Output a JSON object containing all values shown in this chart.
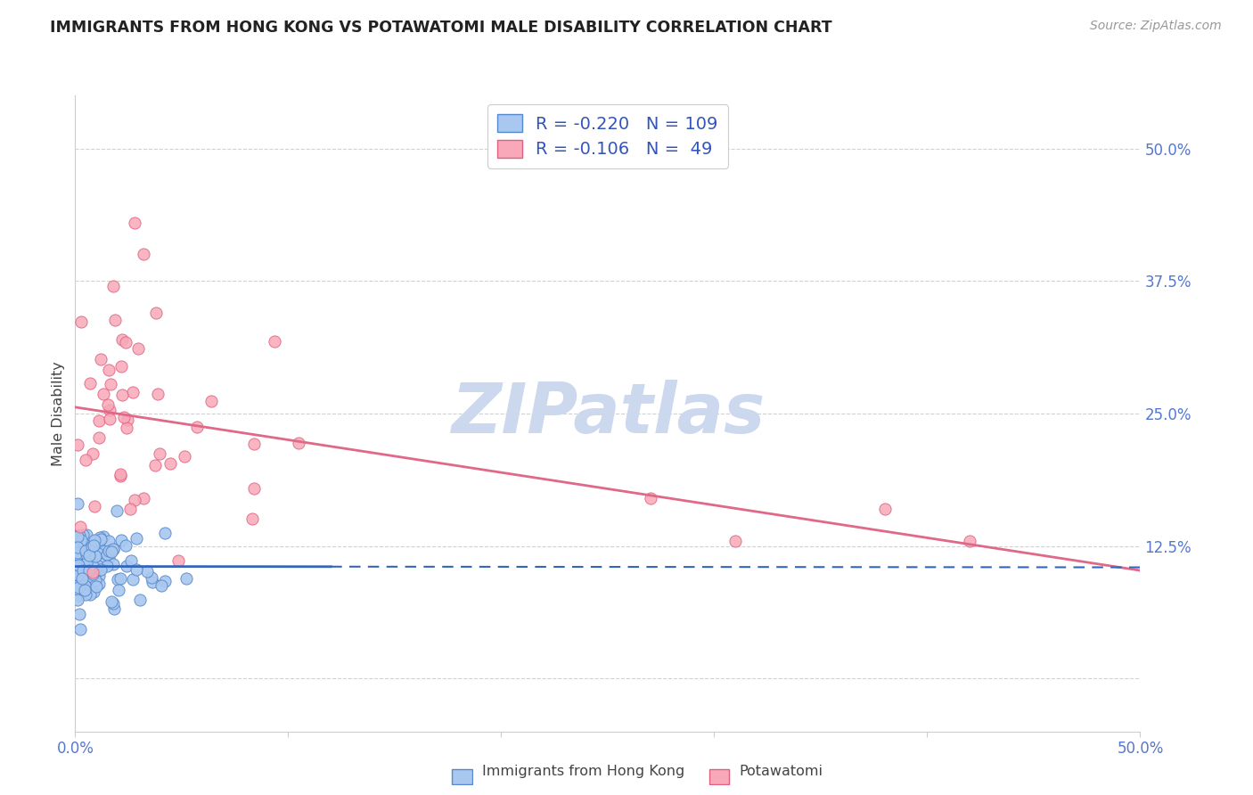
{
  "title": "IMMIGRANTS FROM HONG KONG VS POTAWATOMI MALE DISABILITY CORRELATION CHART",
  "source": "Source: ZipAtlas.com",
  "ylabel": "Male Disability",
  "blue_R": -0.22,
  "blue_N": 109,
  "pink_R": -0.106,
  "pink_N": 49,
  "blue_color": "#a8c8f0",
  "pink_color": "#f8a8b8",
  "blue_edge_color": "#5588cc",
  "pink_edge_color": "#e06080",
  "blue_line_color": "#3366bb",
  "pink_line_color": "#e06888",
  "legend_text_color": "#3355bb",
  "title_color": "#222222",
  "watermark_color": "#ccd8ee",
  "axis_label_color": "#5577cc",
  "grid_color": "#cccccc",
  "background_color": "#ffffff",
  "xlim": [
    0.0,
    0.5
  ],
  "ylim": [
    -0.05,
    0.55
  ],
  "yticks": [
    0.0,
    0.125,
    0.25,
    0.375,
    0.5
  ],
  "ytick_labels": [
    "",
    "12.5%",
    "25.0%",
    "37.5%",
    "50.0%"
  ],
  "xtick_labels": [
    "0.0%",
    "",
    "",
    "",
    "",
    "50.0%"
  ]
}
